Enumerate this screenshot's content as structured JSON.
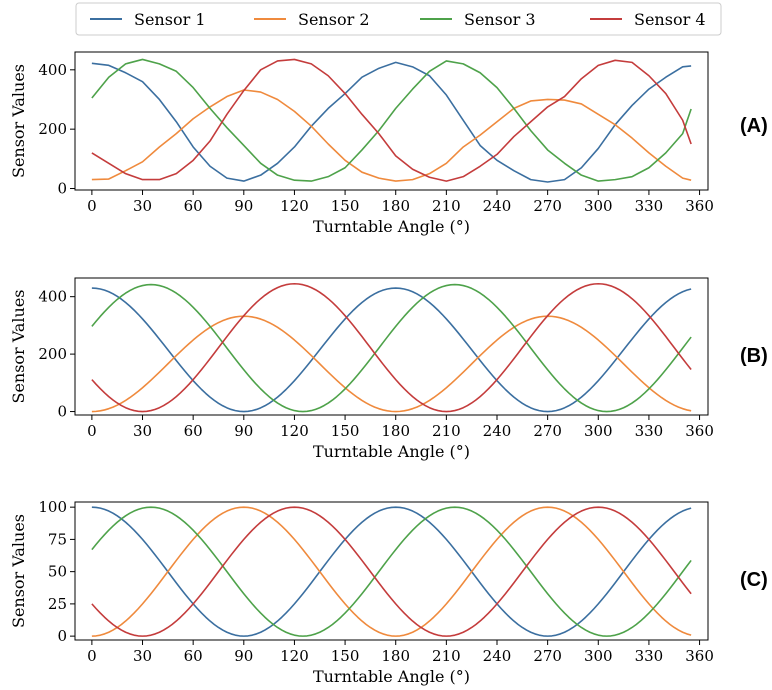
{
  "legend": {
    "entries": [
      {
        "name": "Sensor 1",
        "color": "#3b6fa0"
      },
      {
        "name": "Sensor 2",
        "color": "#ef8a3d"
      },
      {
        "name": "Sensor 3",
        "color": "#4ea24a"
      },
      {
        "name": "Sensor 4",
        "color": "#c43c3c"
      }
    ],
    "placement": "top-center"
  },
  "chart_data": [
    {
      "type": "line",
      "panel_label": "(A)",
      "xlabel": "Turntable Angle (°)",
      "ylabel": "Sensor Values",
      "xlim": [
        -10,
        365
      ],
      "ylim": [
        -5,
        460
      ],
      "xticks": [
        0,
        30,
        60,
        90,
        120,
        150,
        180,
        210,
        240,
        270,
        300,
        330,
        360
      ],
      "yticks": [
        0,
        200,
        400
      ],
      "grid": false,
      "x": [
        0,
        10,
        20,
        30,
        40,
        50,
        60,
        70,
        80,
        90,
        100,
        110,
        120,
        130,
        140,
        150,
        160,
        170,
        180,
        190,
        200,
        210,
        220,
        230,
        240,
        250,
        260,
        270,
        280,
        290,
        300,
        310,
        320,
        330,
        340,
        350,
        355
      ],
      "series": [
        {
          "name": "Sensor 1",
          "values": [
            422,
            415,
            390,
            360,
            300,
            225,
            140,
            75,
            35,
            25,
            45,
            85,
            140,
            210,
            270,
            320,
            375,
            405,
            425,
            410,
            380,
            315,
            230,
            145,
            95,
            60,
            30,
            22,
            30,
            70,
            135,
            215,
            280,
            335,
            375,
            410,
            413
          ]
        },
        {
          "name": "Sensor 2",
          "values": [
            30,
            32,
            60,
            90,
            140,
            185,
            235,
            275,
            310,
            332,
            325,
            300,
            260,
            210,
            150,
            95,
            55,
            35,
            25,
            30,
            50,
            85,
            140,
            180,
            225,
            270,
            295,
            300,
            298,
            285,
            250,
            215,
            170,
            120,
            75,
            35,
            28
          ]
        },
        {
          "name": "Sensor 3",
          "values": [
            305,
            375,
            420,
            435,
            420,
            395,
            340,
            270,
            205,
            145,
            85,
            45,
            28,
            25,
            40,
            70,
            130,
            195,
            270,
            335,
            395,
            430,
            420,
            390,
            340,
            270,
            195,
            130,
            85,
            45,
            25,
            30,
            40,
            70,
            120,
            185,
            268
          ]
        },
        {
          "name": "Sensor 4",
          "values": [
            120,
            85,
            50,
            30,
            30,
            50,
            95,
            160,
            250,
            330,
            400,
            430,
            435,
            420,
            380,
            320,
            250,
            185,
            110,
            65,
            38,
            25,
            40,
            75,
            115,
            175,
            225,
            275,
            310,
            370,
            415,
            432,
            425,
            380,
            320,
            230,
            150
          ]
        }
      ]
    },
    {
      "type": "line",
      "panel_label": "(B)",
      "xlabel": "Turntable Angle (°)",
      "ylabel": "Sensor Values",
      "xlim": [
        -10,
        365
      ],
      "ylim": [
        -12,
        465
      ],
      "xticks": [
        0,
        30,
        60,
        90,
        120,
        150,
        180,
        210,
        240,
        270,
        300,
        330,
        360
      ],
      "yticks": [
        0,
        200,
        400
      ],
      "grid": false,
      "x_range": [
        0,
        355
      ],
      "series": [
        {
          "name": "Sensor 1",
          "amplitude": 430,
          "phase_deg": 0
        },
        {
          "name": "Sensor 2",
          "amplitude": 332,
          "phase_deg": 90
        },
        {
          "name": "Sensor 3",
          "amplitude": 442,
          "phase_deg": 35
        },
        {
          "name": "Sensor 4",
          "amplitude": 445,
          "phase_deg": 120
        }
      ]
    },
    {
      "type": "line",
      "panel_label": "(C)",
      "xlabel": "Turntable Angle (°)",
      "ylabel": "Sensor Values",
      "xlim": [
        -10,
        365
      ],
      "ylim": [
        -3,
        104
      ],
      "xticks": [
        0,
        30,
        60,
        90,
        120,
        150,
        180,
        210,
        240,
        270,
        300,
        330,
        360
      ],
      "yticks": [
        0,
        25,
        50,
        75,
        100
      ],
      "grid": false,
      "x_range": [
        0,
        355
      ],
      "series": [
        {
          "name": "Sensor 1",
          "amplitude": 100,
          "phase_deg": 0
        },
        {
          "name": "Sensor 2",
          "amplitude": 100,
          "phase_deg": 90
        },
        {
          "name": "Sensor 3",
          "amplitude": 100,
          "phase_deg": 35
        },
        {
          "name": "Sensor 4",
          "amplitude": 100,
          "phase_deg": 120
        }
      ]
    }
  ]
}
